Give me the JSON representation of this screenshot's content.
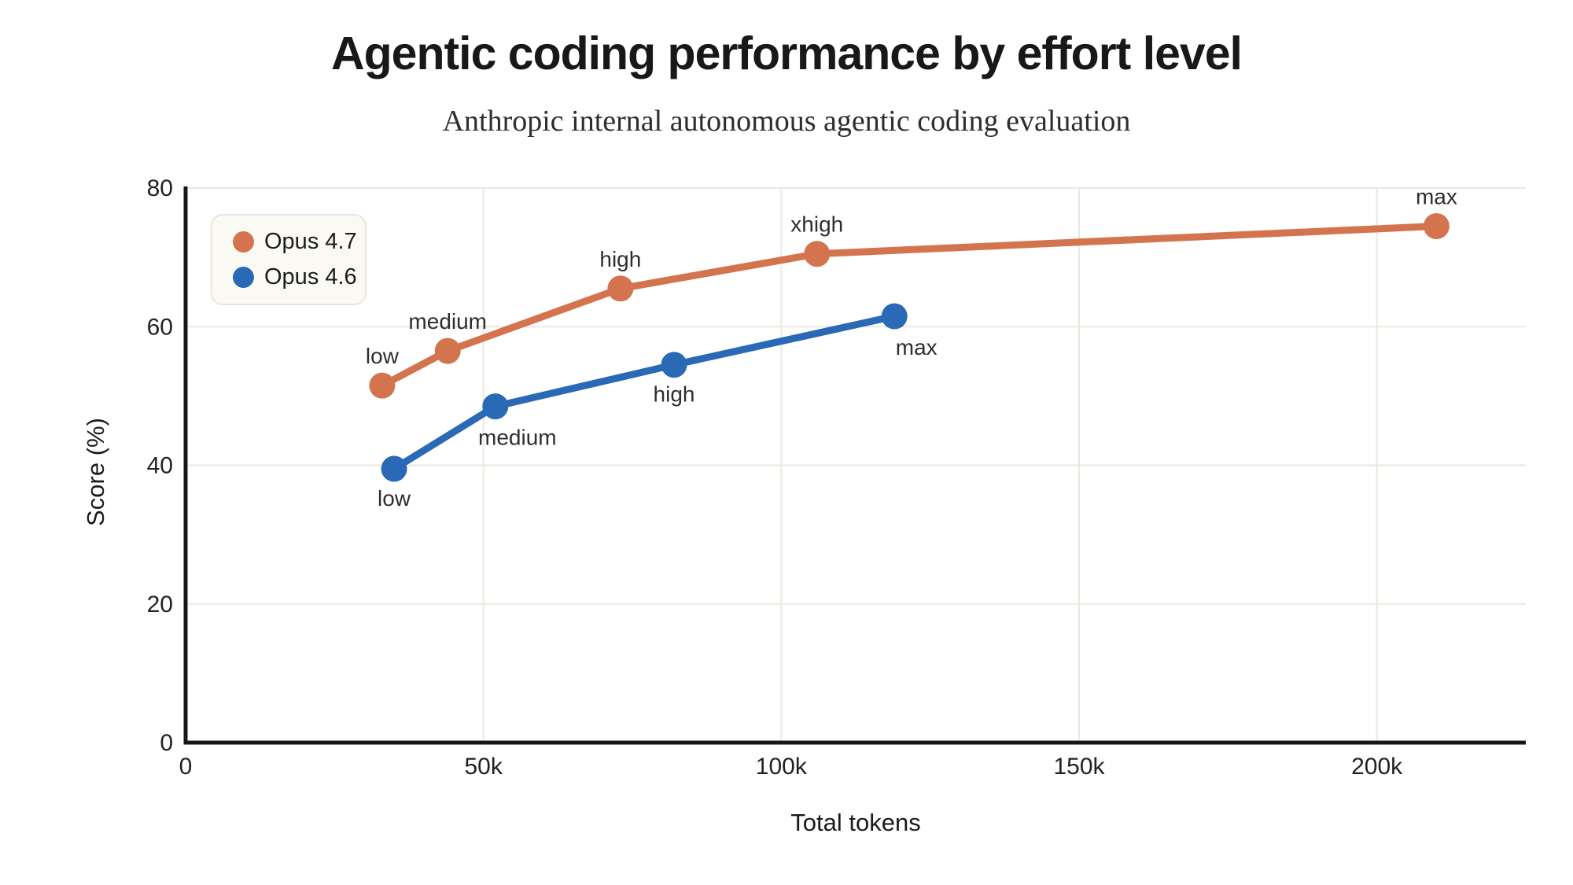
{
  "title": "Agentic coding performance by effort level",
  "subtitle": "Anthropic internal autonomous agentic coding evaluation",
  "colors": {
    "opus47": "#d4744f",
    "opus46": "#2969b5",
    "grid": "#ebe9df",
    "axis": "#161616",
    "tick_text": "#222222",
    "point_label_text": "#2e2e2e",
    "legend_bg": "#faf9f4",
    "legend_border": "#e8e6dc"
  },
  "chart_data": {
    "type": "line",
    "title": "Agentic coding performance by effort level",
    "subtitle": "Anthropic internal autonomous agentic coding evaluation",
    "xlabel": "Total tokens",
    "ylabel": "Score (%)",
    "xlim": [
      0,
      225000
    ],
    "ylim": [
      0,
      80
    ],
    "grid": true,
    "legend_position": "top-left",
    "x_ticks": [
      {
        "value": 0,
        "label": "0"
      },
      {
        "value": 50000,
        "label": "50k"
      },
      {
        "value": 100000,
        "label": "100k"
      },
      {
        "value": 150000,
        "label": "150k"
      },
      {
        "value": 200000,
        "label": "200k"
      }
    ],
    "y_ticks": [
      {
        "value": 0,
        "label": "0"
      },
      {
        "value": 20,
        "label": "20"
      },
      {
        "value": 40,
        "label": "40"
      },
      {
        "value": 60,
        "label": "60"
      },
      {
        "value": 80,
        "label": "80"
      }
    ],
    "series": [
      {
        "name": "Opus 4.7",
        "color_key": "opus47",
        "points": [
          {
            "x": 33000,
            "y": 51.5,
            "label": "low",
            "label_pos": "above"
          },
          {
            "x": 44000,
            "y": 56.5,
            "label": "medium",
            "label_pos": "above"
          },
          {
            "x": 73000,
            "y": 65.5,
            "label": "high",
            "label_pos": "above"
          },
          {
            "x": 106000,
            "y": 70.5,
            "label": "xhigh",
            "label_pos": "above"
          },
          {
            "x": 210000,
            "y": 74.5,
            "label": "max",
            "label_pos": "above"
          }
        ]
      },
      {
        "name": "Opus 4.6",
        "color_key": "opus46",
        "points": [
          {
            "x": 35000,
            "y": 39.5,
            "label": "low",
            "label_pos": "below"
          },
          {
            "x": 52000,
            "y": 48.5,
            "label": "medium",
            "label_pos": "below-right"
          },
          {
            "x": 82000,
            "y": 54.5,
            "label": "high",
            "label_pos": "below"
          },
          {
            "x": 119000,
            "y": 61.5,
            "label": "max",
            "label_pos": "below-right"
          }
        ]
      }
    ]
  }
}
